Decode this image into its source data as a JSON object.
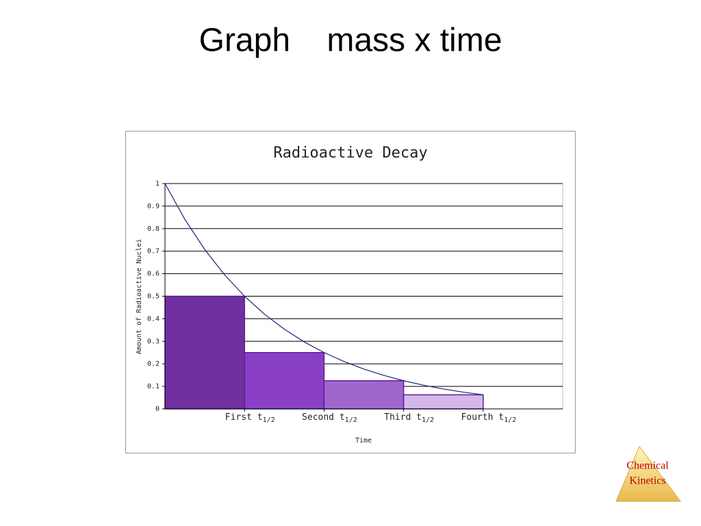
{
  "title": "Graph    mass x time",
  "chart_data": {
    "type": "histogram",
    "title": "Radioactive Decay",
    "y_label": "Amount of Radioactive Nuclei",
    "x_label": "Time",
    "bins": [
      0,
      1,
      2,
      3,
      4
    ],
    "values": [
      0.5,
      0.25,
      0.125,
      0.0625
    ],
    "colors": [
      "#7030a0",
      "#8a40c6",
      "#a066cc",
      "#d4b8ec"
    ],
    "curve": {
      "color": "#1f1f7a",
      "x": [
        0,
        0.25,
        0.5,
        0.75,
        1,
        1.25,
        1.5,
        1.75,
        2,
        2.25,
        2.5,
        2.75,
        3,
        3.25,
        3.5,
        3.75,
        4
      ],
      "values": [
        1,
        0.8409,
        0.7071,
        0.5946,
        0.5,
        0.4204,
        0.3536,
        0.2973,
        0.25,
        0.2102,
        0.1768,
        0.1487,
        0.125,
        0.1051,
        0.0884,
        0.0743,
        0.0625
      ]
    },
    "xlim": [
      0,
      5
    ],
    "xticks": [
      {
        "value": 1,
        "label": "First t",
        "subscript": "1/2"
      },
      {
        "value": 2,
        "label": "Second t",
        "subscript": "1/2"
      },
      {
        "value": 3,
        "label": "Third t",
        "subscript": "1/2"
      },
      {
        "value": 4,
        "label": "Fourth t",
        "subscript": "1/2"
      }
    ],
    "ylim": [
      0,
      1
    ],
    "yticks": [
      0,
      {
        "value": 0.1,
        "label": "0.1"
      },
      {
        "value": 0.2,
        "label": "0.2"
      },
      {
        "value": 0.3,
        "label": "0.3"
      },
      {
        "value": 0.4,
        "label": "0.4"
      },
      {
        "value": 0.5,
        "label": "0.5"
      },
      {
        "value": 0.6,
        "label": "0.6"
      },
      {
        "value": 0.7,
        "label": "0.7"
      },
      {
        "value": 0.8,
        "label": "0.8"
      },
      {
        "value": 0.9,
        "label": "0.9"
      },
      1
    ],
    "grid": true
  },
  "logo": {
    "lines": [
      "Chemical",
      "Kinetics"
    ]
  }
}
